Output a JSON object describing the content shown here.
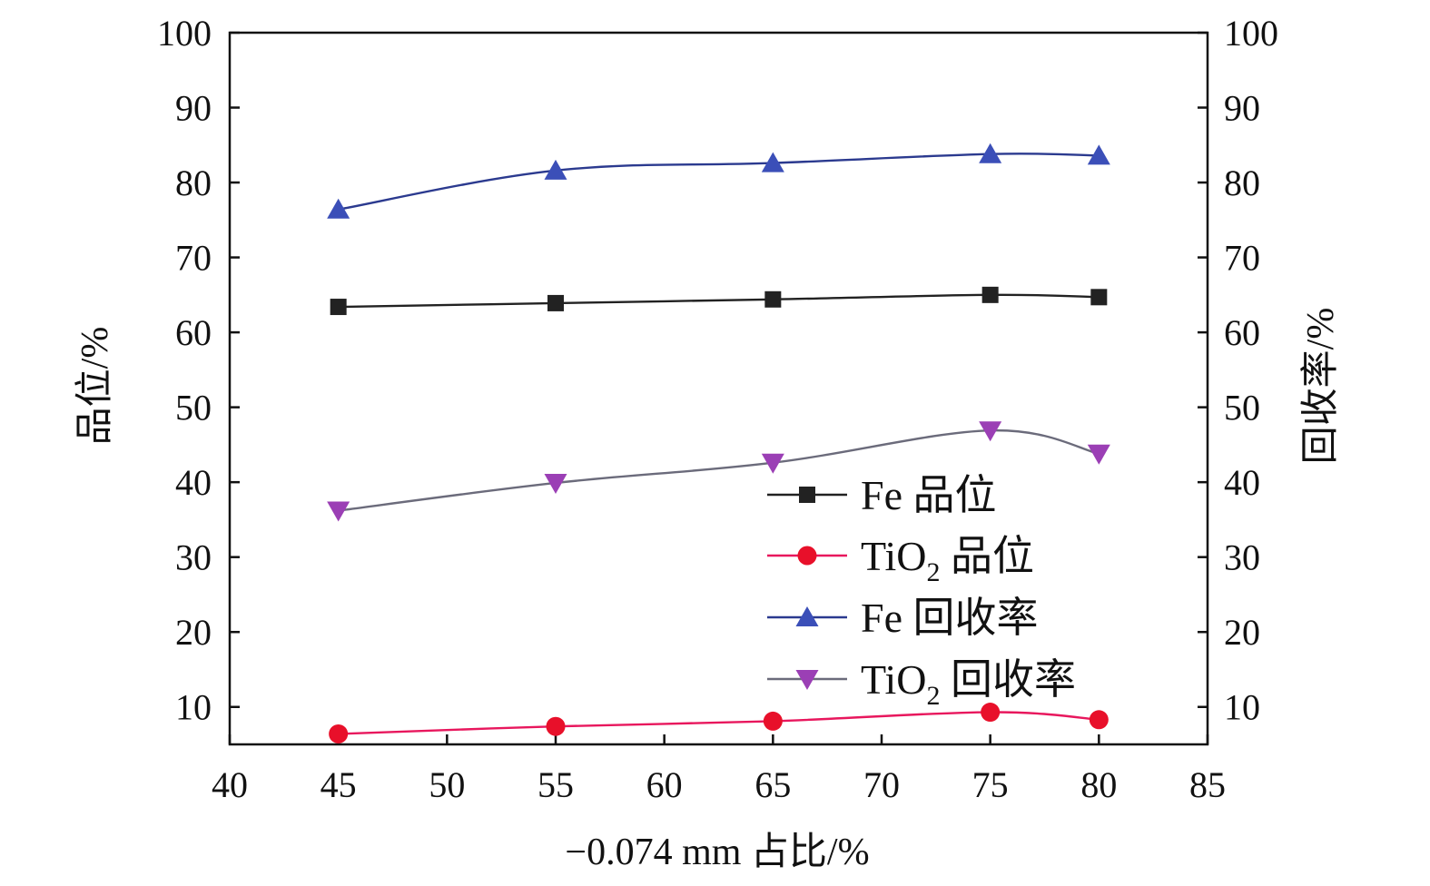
{
  "chart_data": {
    "type": "line",
    "x_label": "−0.074 mm 占比/%",
    "y_left_label": "品位/%",
    "y_right_label": "回收率/%",
    "x_ticks": [
      "40",
      "45",
      "50",
      "55",
      "60",
      "65",
      "70",
      "75",
      "80",
      "85"
    ],
    "y_left_ticks": [
      "10",
      "20",
      "30",
      "40",
      "50",
      "60",
      "70",
      "80",
      "90",
      "100"
    ],
    "y_right_ticks": [
      "10",
      "20",
      "30",
      "40",
      "50",
      "60",
      "70",
      "80",
      "90",
      "100"
    ],
    "xlim": [
      40,
      85
    ],
    "ylim": [
      5,
      100
    ],
    "x": [
      45,
      55,
      65,
      75,
      80
    ],
    "legend_position": "center-right",
    "series": [
      {
        "id": "fe-grade",
        "legend": {
          "main": "Fe",
          "sub": "",
          "rest": " 品位"
        },
        "axis": "left",
        "marker": "square",
        "line_color": "#222222",
        "marker_color": "#222222",
        "values": [
          63.4,
          63.9,
          64.4,
          65.0,
          64.7
        ]
      },
      {
        "id": "tio2-grade",
        "legend": {
          "main": "TiO",
          "sub": "2",
          "rest": " 品位"
        },
        "axis": "left",
        "marker": "circle",
        "line_color": "#e8175d",
        "marker_color": "#e8102a",
        "values": [
          6.4,
          7.4,
          8.1,
          9.3,
          8.3
        ]
      },
      {
        "id": "fe-recovery",
        "legend": {
          "main": "Fe",
          "sub": "",
          "rest": " 回收率"
        },
        "axis": "right",
        "marker": "triangle-up",
        "line_color": "#2b3a8f",
        "marker_color": "#3b4fb8",
        "values": [
          76.4,
          81.6,
          82.6,
          83.8,
          83.6
        ]
      },
      {
        "id": "tio2-recovery",
        "legend": {
          "main": "TiO",
          "sub": "2",
          "rest": " 回收率"
        },
        "axis": "right",
        "marker": "triangle-down",
        "line_color": "#6b6b7b",
        "marker_color": "#9b3fb5",
        "values": [
          36.2,
          39.9,
          42.6,
          46.9,
          43.8
        ]
      }
    ]
  }
}
